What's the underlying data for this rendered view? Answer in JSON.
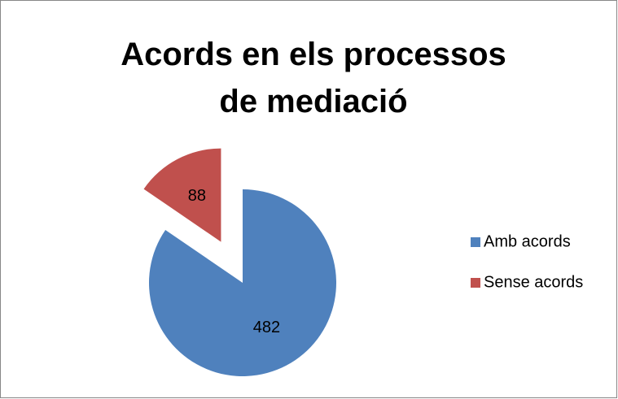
{
  "chart_data": {
    "type": "pie",
    "title": "Acords en els processos de mediació",
    "categories": [
      "Amb acords",
      "Sense acords"
    ],
    "values": [
      482,
      88
    ],
    "colors": [
      "#4f81bd",
      "#c0504d"
    ],
    "legend": "right"
  }
}
